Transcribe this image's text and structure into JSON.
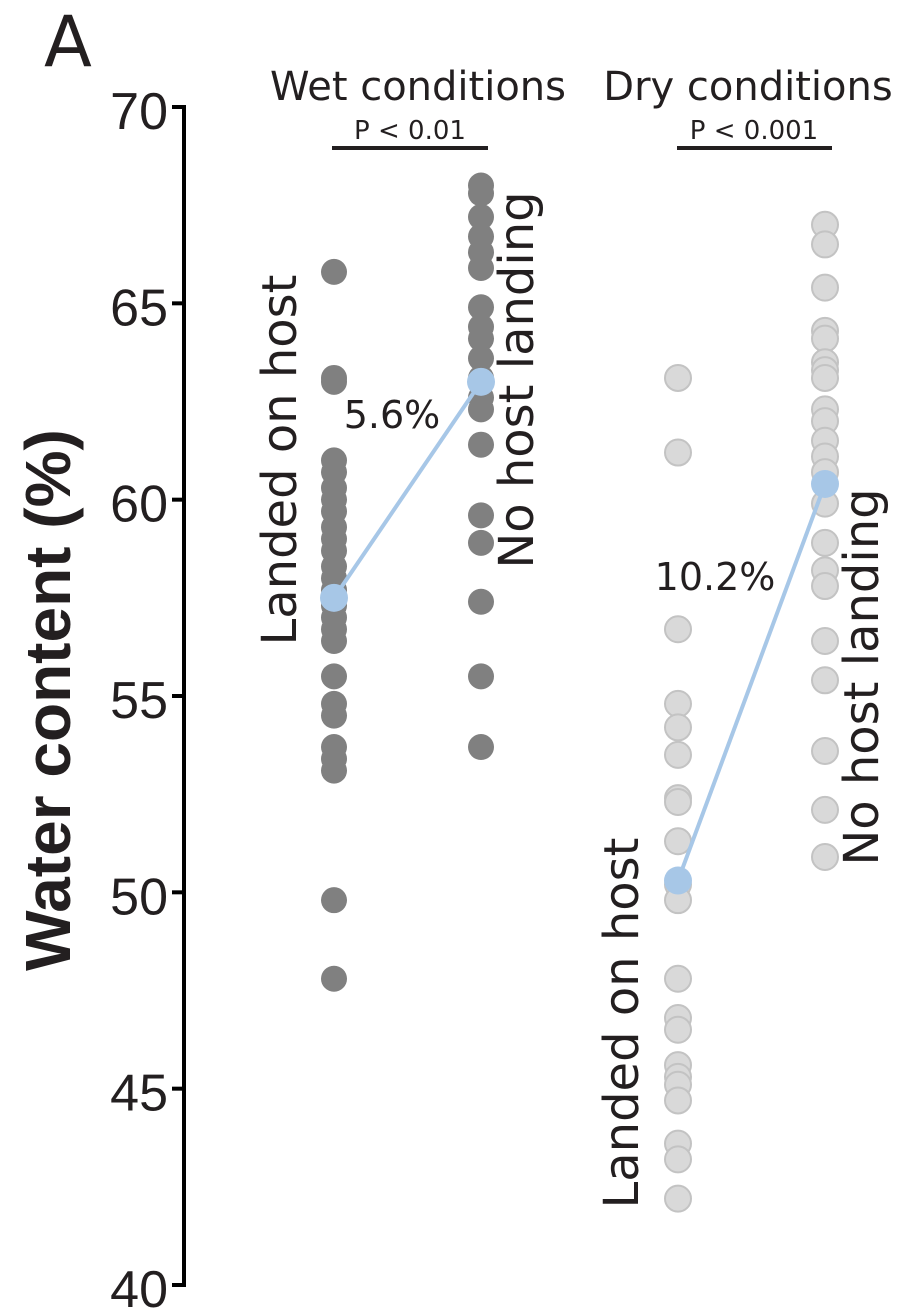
{
  "panel_letter": "A",
  "chart_data": {
    "type": "scatter",
    "ylabel": "Water content (%)",
    "ylim": [
      40,
      70
    ],
    "yticks": [
      40,
      45,
      50,
      55,
      60,
      65,
      70
    ],
    "grid": false,
    "groups": [
      {
        "title": "Wet conditions",
        "p_value": "P < 0.01",
        "difference_label": "5.6%",
        "color": "#808080",
        "series": [
          {
            "name": "Landed on host",
            "values": [
              65.8,
              63.1,
              63.0,
              61.0,
              60.7,
              60.3,
              60.0,
              59.7,
              59.3,
              59.0,
              58.7,
              58.3,
              58.0,
              57.7,
              57.3,
              57.0,
              56.7,
              56.4,
              55.5,
              54.8,
              54.5,
              53.7,
              53.4,
              53.1,
              49.8,
              47.8
            ],
            "mean": 57.5
          },
          {
            "name": "No host landing",
            "values": [
              68.0,
              67.8,
              67.2,
              66.7,
              66.3,
              65.9,
              64.9,
              64.4,
              64.1,
              63.6,
              63.1,
              62.6,
              62.3,
              61.4,
              59.6,
              58.9,
              57.4,
              55.5,
              53.7
            ],
            "mean": 63.0
          }
        ]
      },
      {
        "title": "Dry conditions",
        "p_value": "P < 0.001",
        "difference_label": "10.2%",
        "color": "#d9d9d9",
        "series": [
          {
            "name": "Landed on host",
            "values": [
              63.1,
              61.2,
              56.7,
              54.8,
              54.2,
              53.5,
              52.4,
              52.3,
              51.3,
              50.2,
              49.8,
              47.8,
              46.8,
              46.5,
              45.6,
              45.3,
              45.1,
              44.7,
              43.6,
              43.2,
              42.2
            ],
            "mean": 50.3
          },
          {
            "name": "No host landing",
            "values": [
              67.0,
              66.5,
              65.4,
              64.3,
              64.1,
              63.5,
              63.3,
              63.1,
              62.3,
              62.0,
              61.5,
              61.1,
              60.7,
              59.9,
              58.9,
              58.2,
              57.8,
              56.4,
              55.4,
              53.6,
              52.1,
              50.9
            ],
            "mean": 60.4
          }
        ]
      }
    ],
    "mean_color": "#a7c7e7"
  }
}
